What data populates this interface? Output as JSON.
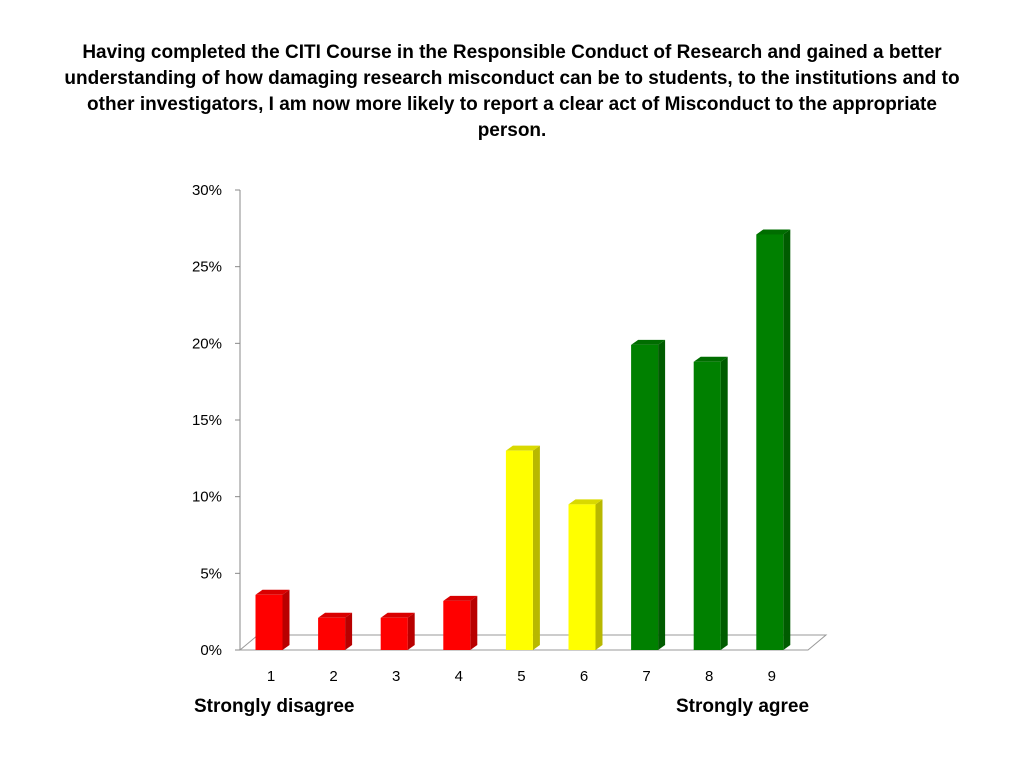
{
  "chart_data": {
    "type": "bar",
    "title": "Having completed the CITI Course in the Responsible Conduct of Research and gained a better understanding of how damaging research misconduct can be to students, to the institutions and to other investigators, I am now more likely to report a clear act of Misconduct to the appropriate person.",
    "categories": [
      "1",
      "2",
      "3",
      "4",
      "5",
      "6",
      "7",
      "8",
      "9"
    ],
    "values": [
      3.6,
      2.1,
      2.1,
      3.2,
      13.0,
      9.5,
      19.9,
      18.8,
      27.1
    ],
    "y_ticks": [
      "0%",
      "5%",
      "10%",
      "15%",
      "20%",
      "25%",
      "30%"
    ],
    "ylim": [
      0,
      30
    ],
    "grid": false,
    "legend": "none",
    "bar_colors": [
      "#ff0000",
      "#ff0000",
      "#ff0000",
      "#ff0000",
      "#ffff00",
      "#ffff00",
      "#008000",
      "#008000",
      "#008000"
    ],
    "end_labels": {
      "left": "Strongly disagree",
      "right": "Strongly agree"
    }
  }
}
